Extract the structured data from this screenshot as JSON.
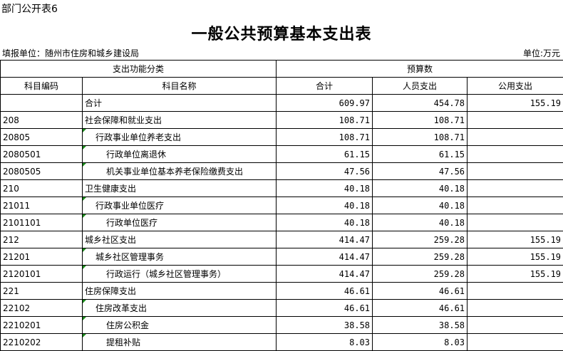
{
  "doc": {
    "tag": "部门公开表6",
    "title": "一般公共预算基本支出表",
    "unit_left": "填报单位：随州市住房和城乡建设局",
    "unit_right": "单位:万元"
  },
  "header": {
    "group1": "支出功能分类",
    "group2": "预算数",
    "code": "科目编码",
    "name": "科目名称",
    "total": "合计",
    "personnel": "人员支出",
    "public": "公用支出"
  },
  "rows": [
    {
      "code": "",
      "name": "合计",
      "level": 1,
      "total": "609.97",
      "personnel": "454.78",
      "public": "155.19",
      "flag": false
    },
    {
      "code": "208",
      "name": "社会保障和就业支出",
      "level": 1,
      "total": "108.71",
      "personnel": "108.71",
      "public": "",
      "flag": false
    },
    {
      "code": "20805",
      "name": "行政事业单位养老支出",
      "level": 2,
      "total": "108.71",
      "personnel": "108.71",
      "public": "",
      "flag": true
    },
    {
      "code": "2080501",
      "name": "行政单位离退休",
      "level": 3,
      "total": "61.15",
      "personnel": "61.15",
      "public": "",
      "flag": true
    },
    {
      "code": "2080505",
      "name": "机关事业单位基本养老保险缴费支出",
      "level": 3,
      "total": "47.56",
      "personnel": "47.56",
      "public": "",
      "flag": true
    },
    {
      "code": "210",
      "name": "卫生健康支出",
      "level": 1,
      "total": "40.18",
      "personnel": "40.18",
      "public": "",
      "flag": false
    },
    {
      "code": "21011",
      "name": "行政事业单位医疗",
      "level": 2,
      "total": "40.18",
      "personnel": "40.18",
      "public": "",
      "flag": true
    },
    {
      "code": "2101101",
      "name": "行政单位医疗",
      "level": 3,
      "total": "40.18",
      "personnel": "40.18",
      "public": "",
      "flag": true
    },
    {
      "code": "212",
      "name": "城乡社区支出",
      "level": 1,
      "total": "414.47",
      "personnel": "259.28",
      "public": "155.19",
      "flag": false
    },
    {
      "code": "21201",
      "name": "城乡社区管理事务",
      "level": 2,
      "total": "414.47",
      "personnel": "259.28",
      "public": "155.19",
      "flag": true
    },
    {
      "code": "2120101",
      "name": "行政运行（城乡社区管理事务）",
      "level": 3,
      "total": "414.47",
      "personnel": "259.28",
      "public": "155.19",
      "flag": true
    },
    {
      "code": "221",
      "name": "住房保障支出",
      "level": 1,
      "total": "46.61",
      "personnel": "46.61",
      "public": "",
      "flag": false
    },
    {
      "code": "22102",
      "name": "住房改革支出",
      "level": 2,
      "total": "46.61",
      "personnel": "46.61",
      "public": "",
      "flag": true
    },
    {
      "code": "2210201",
      "name": "住房公积金",
      "level": 3,
      "total": "38.58",
      "personnel": "38.58",
      "public": "",
      "flag": true
    },
    {
      "code": "2210202",
      "name": "提租补贴",
      "level": 3,
      "total": "8.03",
      "personnel": "8.03",
      "public": "",
      "flag": true
    }
  ]
}
